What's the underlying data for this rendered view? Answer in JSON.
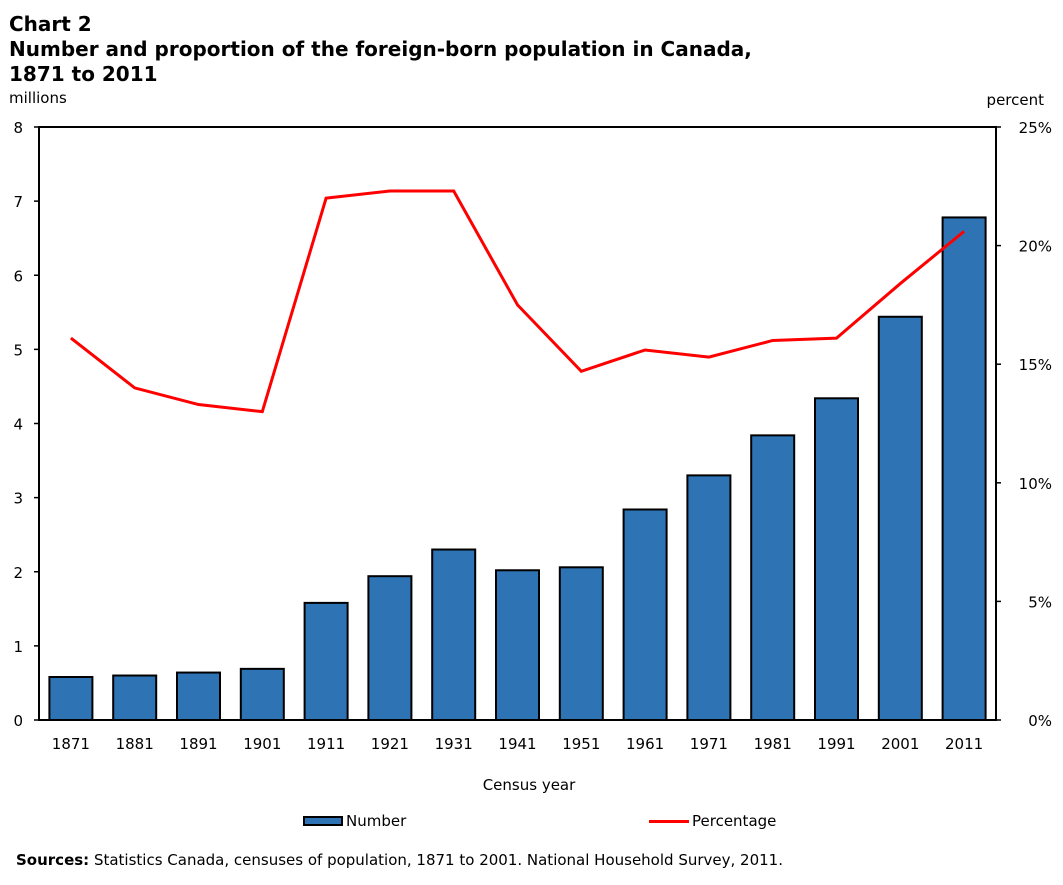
{
  "chart_data": {
    "type": "bar",
    "title_line1": "Chart 2",
    "title_line2": "Number and proportion of the foreign-born population in Canada,",
    "title_line3": "1871 to 2011",
    "xlabel": "Census year",
    "ylabel_left": "millions",
    "ylabel_right": "percent",
    "ylim_left": [
      0,
      8
    ],
    "ylim_right": [
      0,
      25
    ],
    "yticks_left": [
      "0",
      "1",
      "2",
      "3",
      "4",
      "5",
      "6",
      "7",
      "8"
    ],
    "yticks_right": [
      "0%",
      "5%",
      "10%",
      "15%",
      "20%",
      "25%"
    ],
    "categories": [
      "1871",
      "1881",
      "1891",
      "1901",
      "1911",
      "1921",
      "1931",
      "1941",
      "1951",
      "1961",
      "1971",
      "1981",
      "1991",
      "2001",
      "2011"
    ],
    "series": [
      {
        "name": "Number",
        "type": "bar",
        "axis": "left",
        "color": "#2e74b5",
        "values": [
          0.58,
          0.6,
          0.64,
          0.69,
          1.58,
          1.94,
          2.3,
          2.02,
          2.06,
          2.84,
          3.3,
          3.84,
          4.34,
          5.44,
          6.78
        ]
      },
      {
        "name": "Percentage",
        "type": "line",
        "axis": "right",
        "color": "#ff0000",
        "values": [
          16.1,
          14.0,
          13.3,
          13.0,
          22.0,
          22.3,
          22.3,
          17.5,
          14.7,
          15.6,
          15.3,
          16.0,
          16.1,
          18.4,
          20.6
        ]
      }
    ],
    "legend": [
      "Number",
      "Percentage"
    ],
    "legend_position": "bottom",
    "grid": false
  },
  "footer": {
    "sources_label": "Sources:",
    "sources_text": " Statistics Canada, censuses of population, 1871 to 2001. National Household Survey, 2011."
  }
}
